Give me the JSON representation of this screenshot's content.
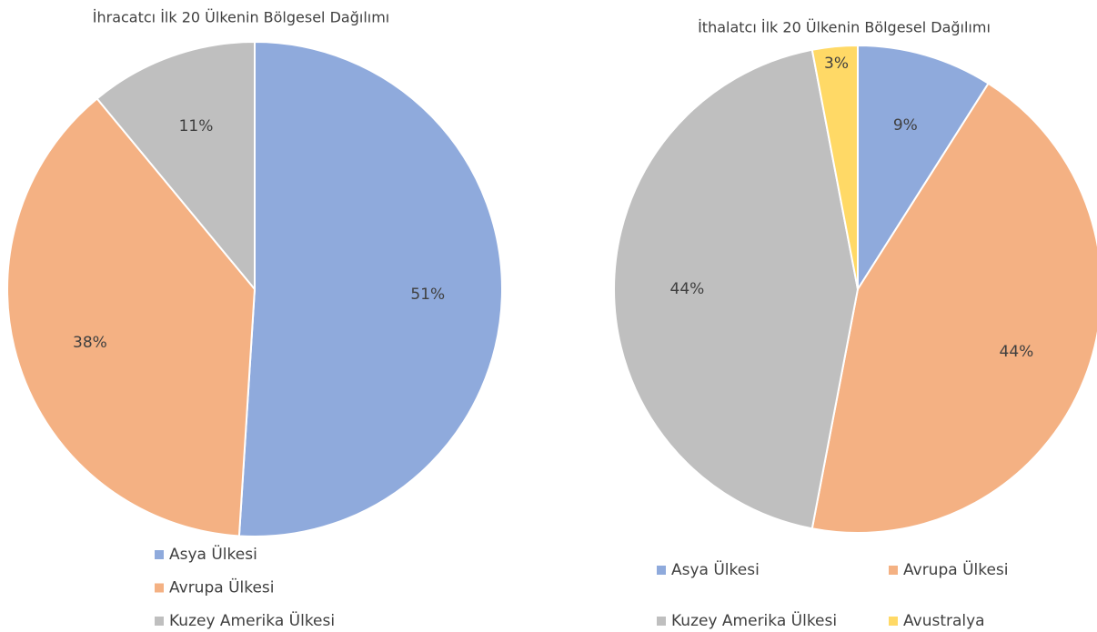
{
  "chart_data": [
    {
      "type": "pie",
      "title": "İhracatcı İlk 20 Ülkenin Bölgesel Dağılımı",
      "categories": [
        "Asya Ülkesi",
        "Avrupa Ülkesi",
        "Kuzey Amerika Ülkesi"
      ],
      "values": [
        51,
        38,
        11
      ],
      "value_labels": [
        "51%",
        "38%",
        "11%"
      ],
      "colors": [
        "#8faadc",
        "#f4b183",
        "#bfbfbf"
      ],
      "legend": "bottom"
    },
    {
      "type": "pie",
      "title": "İthalatcı İlk 20 Ülkenin Bölgesel Dağılımı",
      "categories": [
        "Asya Ülkesi",
        "Avrupa Ülkesi",
        "Kuzey Amerika Ülkesi",
        "Avustralya"
      ],
      "values": [
        9,
        44,
        44,
        3
      ],
      "value_labels": [
        "9%",
        "44%",
        "44%",
        "3%"
      ],
      "colors": [
        "#8faadc",
        "#f4b183",
        "#bfbfbf",
        "#ffd966"
      ],
      "legend": "bottom"
    }
  ]
}
